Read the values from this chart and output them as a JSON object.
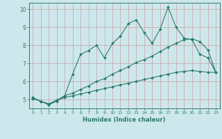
{
  "xlabel": "Humidex (Indice chaleur)",
  "bg_color": "#cde8ec",
  "grid_color": "#b0d4d8",
  "line_color": "#2d7a6a",
  "xlim": [
    -0.5,
    23.5
  ],
  "ylim": [
    4.5,
    10.35
  ],
  "xticks": [
    0,
    1,
    2,
    3,
    4,
    5,
    6,
    7,
    8,
    9,
    10,
    11,
    12,
    13,
    14,
    15,
    16,
    17,
    18,
    19,
    20,
    21,
    22,
    23
  ],
  "yticks": [
    5,
    6,
    7,
    8,
    9,
    10
  ],
  "line1_y": [
    5.1,
    4.9,
    4.7,
    4.9,
    5.2,
    6.4,
    7.5,
    7.7,
    8.0,
    7.3,
    8.1,
    8.5,
    9.2,
    9.4,
    8.7,
    8.1,
    8.9,
    10.1,
    9.0,
    8.4,
    8.3,
    7.5,
    7.3,
    6.5
  ],
  "line2_y": [
    5.05,
    4.9,
    4.75,
    4.95,
    5.2,
    5.35,
    5.55,
    5.75,
    6.0,
    6.15,
    6.4,
    6.6,
    6.8,
    7.05,
    7.2,
    7.4,
    7.65,
    7.9,
    8.1,
    8.3,
    8.35,
    8.2,
    7.75,
    6.5
  ],
  "line3_y": [
    5.05,
    4.9,
    4.75,
    4.95,
    5.1,
    5.2,
    5.3,
    5.4,
    5.5,
    5.6,
    5.7,
    5.8,
    5.9,
    6.0,
    6.1,
    6.2,
    6.3,
    6.4,
    6.5,
    6.55,
    6.6,
    6.55,
    6.5,
    6.5
  ]
}
